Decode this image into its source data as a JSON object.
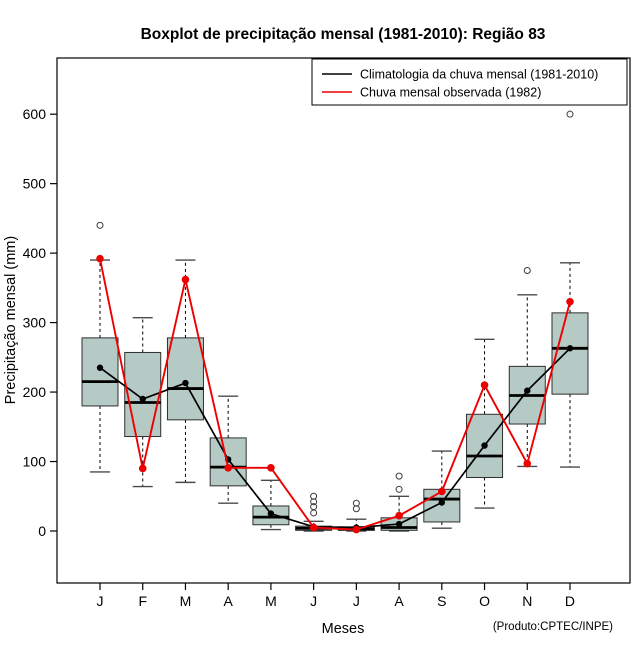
{
  "title": "Boxplot de precipitação mensal (1981-2010): Região 83",
  "caption": "(Produto:CPTEC/INPE)",
  "chart_data": {
    "type": "boxplot",
    "title": "Boxplot de precipitação mensal (1981-2010): Região 83",
    "xlabel": "Meses",
    "ylabel": "Precipitação mensal (mm)",
    "categories": [
      "J",
      "F",
      "M",
      "A",
      "M",
      "J",
      "J",
      "A",
      "S",
      "O",
      "N",
      "D"
    ],
    "y_ticks": [
      0,
      100,
      200,
      300,
      400,
      500,
      600
    ],
    "ylim": [
      -75,
      680
    ],
    "grid": false,
    "legend_position": "top-right",
    "box_fill": "#b5c9c5",
    "box_stroke": "#2f2f2f",
    "boxes": [
      {
        "month": "J",
        "min": 85,
        "q1": 180,
        "median": 215,
        "q3": 278,
        "max": 390,
        "outliers": [
          440
        ]
      },
      {
        "month": "F",
        "min": 64,
        "q1": 136,
        "median": 185,
        "q3": 257,
        "max": 307,
        "outliers": []
      },
      {
        "month": "M",
        "min": 70,
        "q1": 160,
        "median": 205,
        "q3": 278,
        "max": 390,
        "outliers": []
      },
      {
        "month": "A",
        "min": 40,
        "q1": 65,
        "median": 92,
        "q3": 134,
        "max": 194,
        "outliers": []
      },
      {
        "month": "M",
        "min": 2,
        "q1": 9,
        "median": 20,
        "q3": 36,
        "max": 73,
        "outliers": []
      },
      {
        "month": "J",
        "min": 0,
        "q1": 1,
        "median": 4,
        "q3": 7,
        "max": 14,
        "outliers": [
          26,
          35,
          42,
          50
        ]
      },
      {
        "month": "J",
        "min": 0,
        "q1": 1,
        "median": 3,
        "q3": 6,
        "max": 17,
        "outliers": [
          32,
          40
        ]
      },
      {
        "month": "A",
        "min": 0,
        "q1": 1,
        "median": 5,
        "q3": 19,
        "max": 50,
        "outliers": [
          60,
          79
        ]
      },
      {
        "month": "S",
        "min": 4,
        "q1": 13,
        "median": 46,
        "q3": 60,
        "max": 115,
        "outliers": []
      },
      {
        "month": "O",
        "min": 33,
        "q1": 77,
        "median": 108,
        "q3": 168,
        "max": 276,
        "outliers": []
      },
      {
        "month": "N",
        "min": 93,
        "q1": 154,
        "median": 195,
        "q3": 237,
        "max": 340,
        "outliers": [
          375
        ]
      },
      {
        "month": "D",
        "min": 92,
        "q1": 197,
        "median": 263,
        "q3": 314,
        "max": 386,
        "outliers": [
          600
        ]
      }
    ],
    "series": [
      {
        "name": "Climatologia da chuva mensal (1981-2010)",
        "color": "#000000",
        "values": [
          235,
          190,
          213,
          103,
          25,
          6,
          5,
          10,
          41,
          123,
          202,
          263
        ]
      },
      {
        "name": "Chuva mensal observada (1982)",
        "color": "#ee0000",
        "values": [
          392,
          90,
          362,
          91,
          91,
          5,
          2,
          22,
          57,
          210,
          97,
          330
        ]
      }
    ]
  }
}
